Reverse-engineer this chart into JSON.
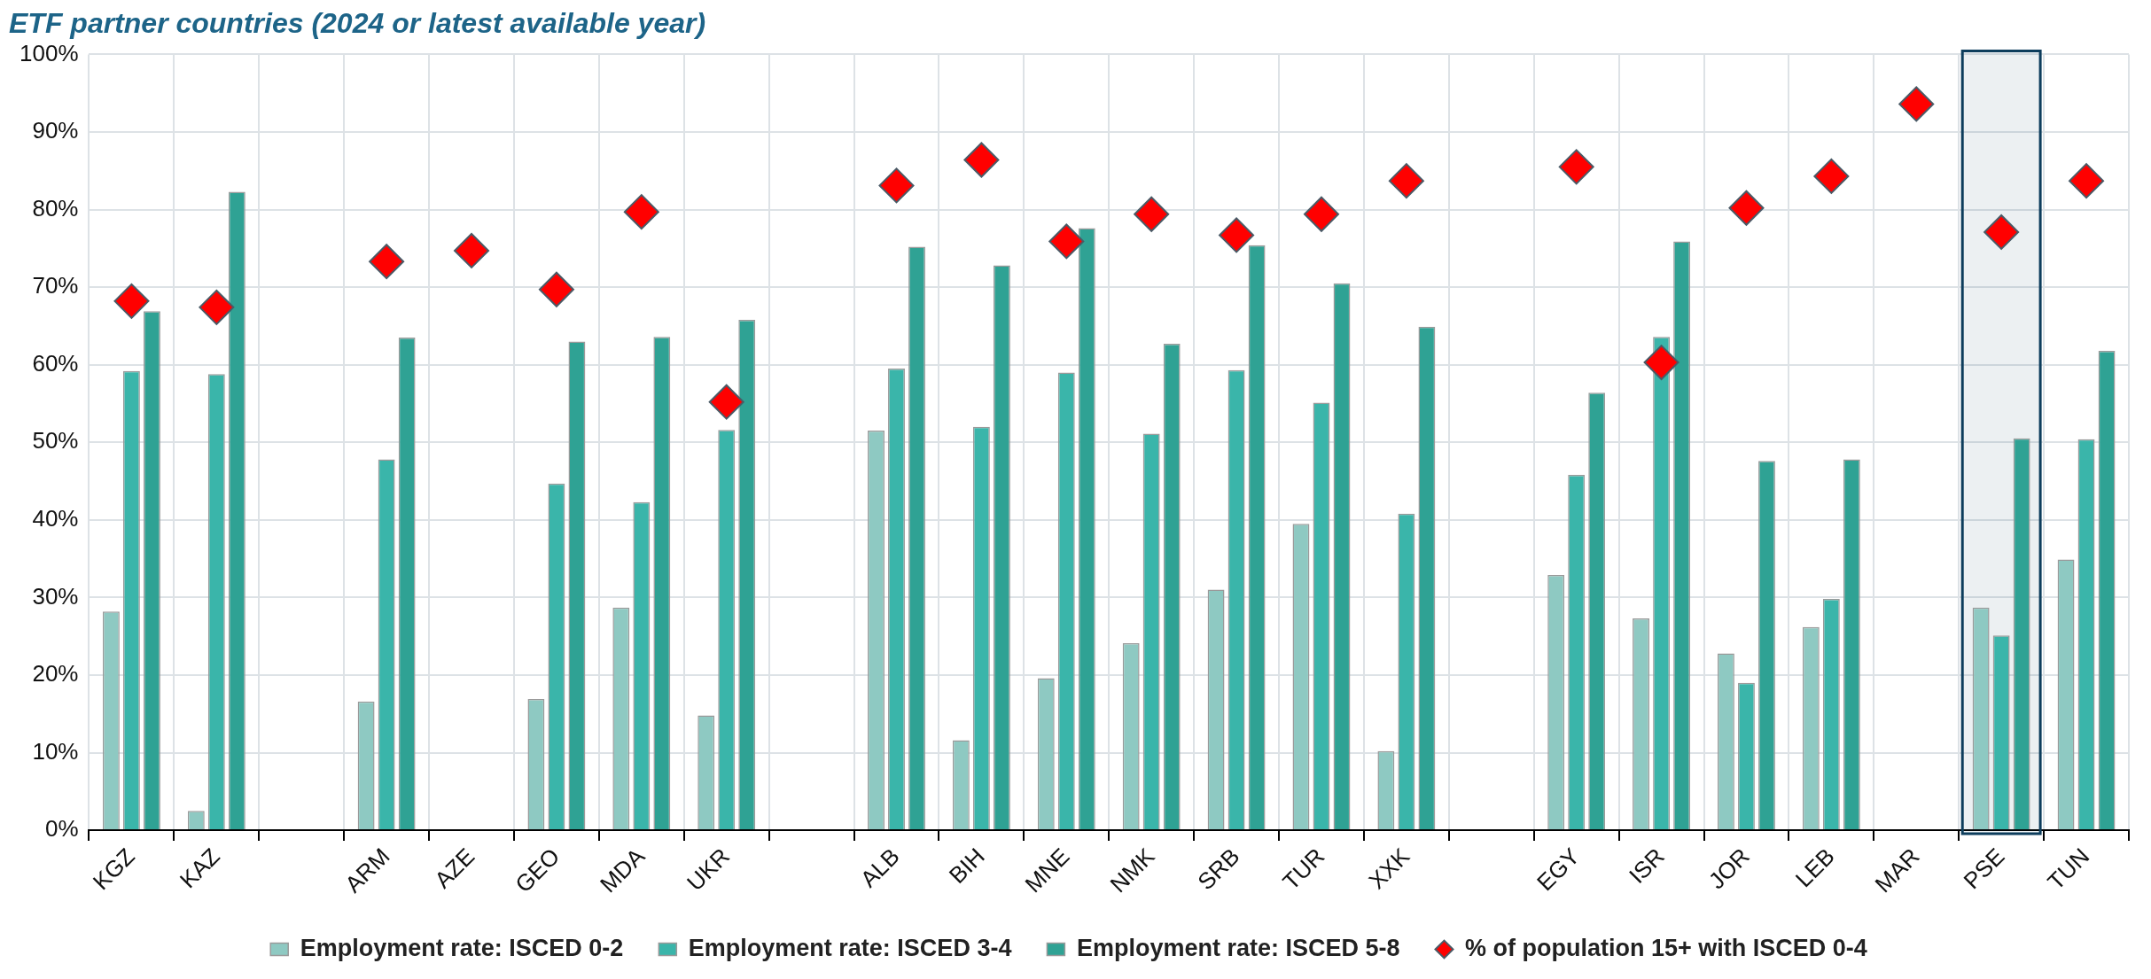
{
  "chart_data": {
    "type": "bar",
    "title": "ETF partner countries (2024 or latest available year)",
    "categories": [
      "KGZ",
      "KAZ",
      null,
      "ARM",
      "AZE",
      "GEO",
      "MDA",
      "UKR",
      null,
      "ALB",
      "BIH",
      "MNE",
      "NMK",
      "SRB",
      "TUR",
      "XXK",
      null,
      "EGY",
      "ISR",
      "JOR",
      "LEB",
      "MAR",
      "PSE",
      "TUN"
    ],
    "series": [
      {
        "name": "Employment rate: ISCED 0-2",
        "color": "#8ec9c2",
        "values": [
          28.2,
          2.5,
          null,
          16.6,
          null,
          16.9,
          28.7,
          14.8,
          null,
          51.5,
          11.6,
          19.6,
          24.1,
          31.0,
          39.5,
          10.2,
          null,
          32.9,
          27.3,
          22.8,
          26.2,
          null,
          28.7,
          34.9
        ]
      },
      {
        "name": "Employment rate: ISCED 3-4",
        "color": "#3ab5aa",
        "values": [
          59.2,
          58.8,
          null,
          47.8,
          null,
          44.7,
          42.3,
          51.6,
          null,
          59.5,
          52.0,
          59.0,
          51.1,
          59.3,
          55.1,
          40.8,
          null,
          45.8,
          63.6,
          19.0,
          29.8,
          null,
          25.1,
          50.4
        ]
      },
      {
        "name": "Employment rate: ISCED 5-8",
        "color": "#2fa294",
        "values": [
          66.9,
          82.3,
          null,
          63.5,
          null,
          63.0,
          63.6,
          65.8,
          null,
          75.2,
          72.8,
          77.6,
          62.7,
          75.4,
          70.5,
          64.9,
          null,
          56.4,
          75.9,
          47.6,
          47.8,
          null,
          50.5,
          61.8
        ]
      },
      {
        "name": "% of population 15+ with ISCED 0-4",
        "type": "scatter",
        "marker": "diamond",
        "color": "#ff0000",
        "values": [
          68.2,
          67.4,
          null,
          73.3,
          74.7,
          69.7,
          79.7,
          55.2,
          null,
          83.1,
          86.4,
          75.9,
          79.4,
          76.7,
          79.4,
          83.7,
          null,
          85.5,
          60.3,
          80.2,
          84.3,
          93.6,
          77.1,
          83.7
        ]
      }
    ],
    "ylim": [
      0,
      100
    ],
    "yticks": [
      {
        "value": 0,
        "label": "0%"
      },
      {
        "value": 10,
        "label": "10%"
      },
      {
        "value": 20,
        "label": "20%"
      },
      {
        "value": 30,
        "label": "30%"
      },
      {
        "value": 40,
        "label": "40%"
      },
      {
        "value": 50,
        "label": "50%"
      },
      {
        "value": 60,
        "label": "60%"
      },
      {
        "value": 70,
        "label": "70%"
      },
      {
        "value": 80,
        "label": "80%"
      },
      {
        "value": 90,
        "label": "90%"
      },
      {
        "value": 100,
        "label": "100%"
      }
    ],
    "bands": [
      {
        "axis": "x",
        "from": "PSE",
        "to": "PSE",
        "color": "#0d3d5c"
      }
    ],
    "grid": true,
    "legend": "bottom"
  }
}
